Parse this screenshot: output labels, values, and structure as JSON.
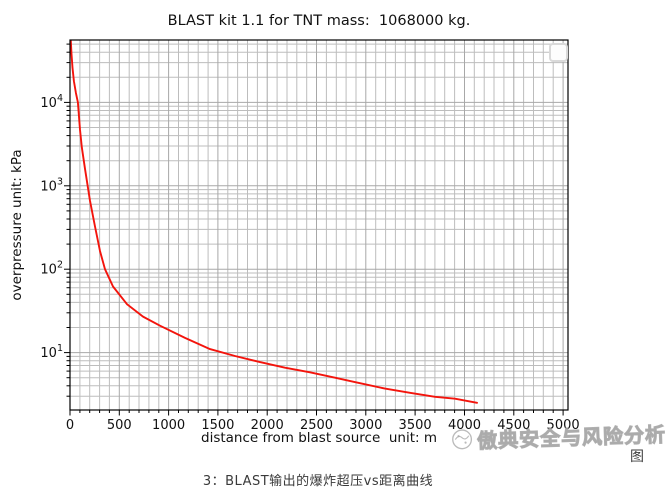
{
  "title": "BLAST kit 1.1 for TNT mass:  1068000 kg.",
  "caption": {
    "figure_word": "图",
    "text": "3：BLAST输出的爆炸超压vs距离曲线"
  },
  "watermark": {
    "logo": "swirl-logo",
    "text": "傲典安全与风险分析",
    "color": "#b2b2b2"
  },
  "corner_widget": {
    "shape": "rounded-square",
    "border_color": "#d9d9d9"
  },
  "chart_data": {
    "type": "line",
    "title": "BLAST kit 1.1 for TNT mass:  1068000 kg.",
    "xlabel": "distance from blast source  unit: m",
    "ylabel": "overpressure unit: kPa",
    "x_scale": "linear",
    "y_scale": "log",
    "xlim": [
      0,
      5050
    ],
    "ylim": [
      2.05,
      56000
    ],
    "x_ticks": [
      0,
      500,
      1000,
      1500,
      2000,
      2500,
      3000,
      3500,
      4000,
      4500,
      5000
    ],
    "x_tick_step": 500,
    "x_minor_step": 100,
    "y_major_ticks": [
      10,
      100,
      1000,
      10000
    ],
    "grid": true,
    "grid_which": "both",
    "grid_major_color": "#a8a8a8",
    "grid_minor_color": "#bdbdbd",
    "legend": "none",
    "series": [
      {
        "name": "overpressure vs distance",
        "color": "#f3140c",
        "points": [
          [
            8,
            55000
          ],
          [
            15,
            38000
          ],
          [
            25,
            26000
          ],
          [
            40,
            18000
          ],
          [
            60,
            13000
          ],
          [
            80,
            10000
          ],
          [
            90,
            7000
          ],
          [
            101,
            4700
          ],
          [
            120,
            2900
          ],
          [
            152,
            1600
          ],
          [
            203,
            660
          ],
          [
            253,
            330
          ],
          [
            304,
            165
          ],
          [
            355,
            100
          ],
          [
            436,
            62
          ],
          [
            578,
            38
          ],
          [
            740,
            27
          ],
          [
            913,
            21
          ],
          [
            1166,
            15
          ],
          [
            1420,
            11
          ],
          [
            1673,
            9.1
          ],
          [
            1927,
            7.7
          ],
          [
            2180,
            6.6
          ],
          [
            2434,
            5.8
          ],
          [
            2687,
            5.0
          ],
          [
            2941,
            4.3
          ],
          [
            3194,
            3.7
          ],
          [
            3448,
            3.3
          ],
          [
            3701,
            2.95
          ],
          [
            3904,
            2.8
          ],
          [
            4127,
            2.5
          ]
        ]
      }
    ]
  }
}
